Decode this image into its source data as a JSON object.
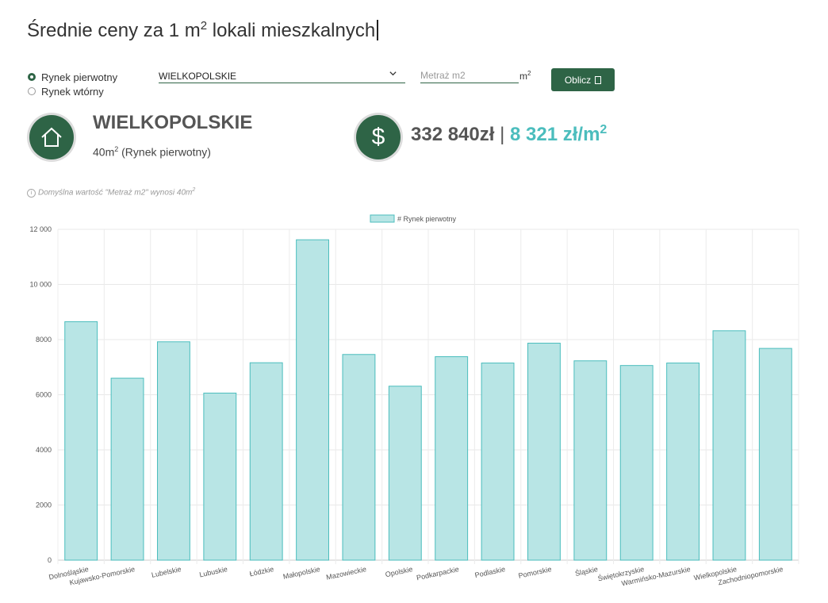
{
  "header": {
    "title_main": "Średnie ceny za 1 m",
    "title_sup": "2",
    "title_rest": " lokali mieszkalnych"
  },
  "form": {
    "market_options": [
      {
        "label": "Rynek pierwotny",
        "checked": true
      },
      {
        "label": "Rynek wtórny",
        "checked": false
      }
    ],
    "region_selected": "WIELKOPOLSKIE",
    "metraz_placeholder": "Metraż m2",
    "unit_main": "m",
    "unit_sup": "2",
    "button_label": "Oblicz"
  },
  "result": {
    "region": "WIELKOPOLSKIE",
    "area_main": "40m",
    "area_sup": "2",
    "area_rest": " (Rynek pierwotny)",
    "total_price": "332 840zł",
    "separator": "|",
    "per_m2_main": "8 321 zł/m",
    "per_m2_sup": "2",
    "dollar_symbol": "$"
  },
  "note": {
    "info_icon": "i",
    "text_main": "Domyślna wartość \"Metraż m2\" wynosi 40m",
    "text_sup": "2"
  },
  "colors": {
    "primary": "#2e6446",
    "accent": "#4bbdbd",
    "bar_fill": "#b8e5e5",
    "bar_stroke": "#4bbdbd"
  },
  "chart_data": {
    "type": "bar",
    "legend": "# Rynek pierwotny",
    "legend_position": "top",
    "categories": [
      "Dolnośląskie",
      "Kujawsko-Pomorskie",
      "Lubelskie",
      "Lubuskie",
      "Łódzkie",
      "Małopolskie",
      "Mazowieckie",
      "Opolskie",
      "Podkarpackie",
      "Podlaskie",
      "Pomorskie",
      "Śląskie",
      "Świętokrzyskie",
      "Warmińsko-Mazurskie",
      "Wielkopolskie",
      "Zachodniopomorskie"
    ],
    "values": [
      8650,
      6600,
      7920,
      6060,
      7160,
      11620,
      7460,
      6310,
      7380,
      7150,
      7870,
      7230,
      7060,
      7150,
      8321,
      7680
    ],
    "ylim": [
      0,
      12000
    ],
    "yticks": [
      0,
      2000,
      4000,
      6000,
      8000,
      10000,
      12000
    ],
    "ytick_labels": [
      "0",
      "2000",
      "4000",
      "6000",
      "8000",
      "10 000",
      "12 000"
    ],
    "grid": true
  }
}
